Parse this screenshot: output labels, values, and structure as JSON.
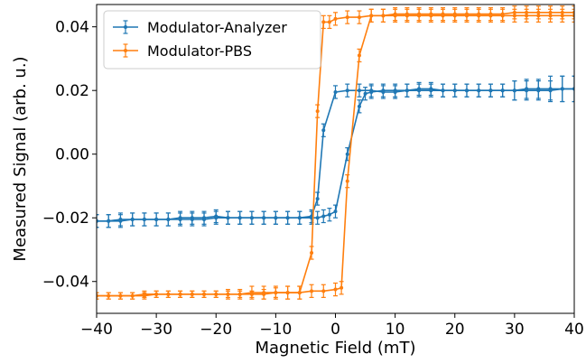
{
  "chart_data": {
    "type": "line",
    "title": "",
    "xlabel": "Magnetic Field (mT)",
    "ylabel": "Measured Signal (arb. u.)",
    "xlim": [
      -40,
      40
    ],
    "ylim": [
      -0.05,
      0.047
    ],
    "xticks": [
      -40,
      -30,
      -20,
      -10,
      0,
      10,
      20,
      30,
      40
    ],
    "xtick_labels": [
      "−40",
      "−30",
      "−20",
      "−10",
      "0",
      "10",
      "20",
      "30",
      "40"
    ],
    "yticks": [
      -0.04,
      -0.02,
      0.0,
      0.02,
      0.04
    ],
    "ytick_labels": [
      "−0.04",
      "−0.02",
      "0.00",
      "0.02",
      "0.04"
    ],
    "grid": false,
    "legend_position": "top-left",
    "error_bars": true,
    "series": [
      {
        "name": "Modulator-Analyzer",
        "color": "#1f77b4",
        "branches": [
          {
            "x": [
              -40,
              -38,
              -36,
              -34,
              -32,
              -30,
              -28,
              -26,
              -24,
              -22,
              -20,
              -18,
              -16,
              -14,
              -12,
              -10,
              -8,
              -6,
              -4,
              -3,
              -2,
              -1,
              0,
              2,
              4,
              5,
              6,
              8,
              10,
              12,
              14,
              16,
              18,
              20,
              22,
              24,
              26,
              28,
              30,
              32,
              34,
              36,
              38,
              40
            ],
            "y": [
              -0.021,
              -0.021,
              -0.0205,
              -0.0205,
              -0.0205,
              -0.0205,
              -0.0205,
              -0.02,
              -0.02,
              -0.02,
              -0.0195,
              -0.02,
              -0.02,
              -0.02,
              -0.02,
              -0.02,
              -0.02,
              -0.02,
              -0.02,
              -0.02,
              -0.0195,
              -0.019,
              -0.018,
              0.0,
              0.015,
              0.019,
              0.0195,
              0.02,
              0.02,
              0.02,
              0.0205,
              0.0205,
              0.02,
              0.02,
              0.02,
              0.02,
              0.02,
              0.02,
              0.02,
              0.0205,
              0.0205,
              0.0205,
              0.0205,
              0.0205
            ],
            "err": [
              0.002,
              0.002,
              0.002,
              0.002,
              0.002,
              0.002,
              0.002,
              0.002,
              0.002,
              0.002,
              0.002,
              0.002,
              0.002,
              0.002,
              0.002,
              0.002,
              0.002,
              0.002,
              0.002,
              0.002,
              0.002,
              0.002,
              0.002,
              0.002,
              0.002,
              0.002,
              0.002,
              0.002,
              0.002,
              0.002,
              0.002,
              0.002,
              0.002,
              0.002,
              0.002,
              0.002,
              0.002,
              0.002,
              0.003,
              0.003,
              0.003,
              0.004,
              0.004,
              0.004
            ]
          },
          {
            "x": [
              40,
              38,
              36,
              34,
              32,
              30,
              28,
              26,
              24,
              22,
              20,
              18,
              16,
              14,
              12,
              10,
              8,
              6,
              4,
              2,
              0,
              -2,
              -3,
              -4,
              -6,
              -8,
              -10,
              -12,
              -14,
              -16,
              -18,
              -20,
              -22,
              -24,
              -26,
              -28,
              -30,
              -32,
              -34,
              -36,
              -38,
              -40
            ],
            "y": [
              0.0205,
              0.0205,
              0.02,
              0.02,
              0.02,
              0.02,
              0.02,
              0.02,
              0.02,
              0.02,
              0.02,
              0.02,
              0.02,
              0.02,
              0.02,
              0.0195,
              0.0195,
              0.02,
              0.02,
              0.02,
              0.0195,
              0.0075,
              -0.014,
              -0.0195,
              -0.02,
              -0.02,
              -0.02,
              -0.02,
              -0.02,
              -0.02,
              -0.02,
              -0.02,
              -0.0205,
              -0.0205,
              -0.0205,
              -0.0205,
              -0.0205,
              -0.0205,
              -0.0205,
              -0.021,
              -0.021,
              -0.021
            ],
            "err": [
              0.004,
              0.004,
              0.003,
              0.003,
              0.003,
              0.003,
              0.002,
              0.002,
              0.002,
              0.002,
              0.002,
              0.002,
              0.002,
              0.002,
              0.002,
              0.002,
              0.002,
              0.002,
              0.002,
              0.002,
              0.002,
              0.002,
              0.002,
              0.002,
              0.002,
              0.002,
              0.002,
              0.002,
              0.002,
              0.002,
              0.002,
              0.002,
              0.002,
              0.002,
              0.002,
              0.002,
              0.002,
              0.002,
              0.002,
              0.002,
              0.002,
              0.002
            ]
          }
        ]
      },
      {
        "name": "Modulator-PBS",
        "color": "#ff7f0e",
        "branches": [
          {
            "x": [
              -40,
              -38,
              -36,
              -34,
              -32,
              -30,
              -28,
              -26,
              -24,
              -22,
              -20,
              -18,
              -16,
              -14,
              -12,
              -10,
              -8,
              -6,
              -4,
              -2,
              0,
              1,
              2,
              4,
              6,
              8,
              10,
              12,
              14,
              16,
              18,
              20,
              22,
              24,
              26,
              28,
              30,
              32,
              34,
              36,
              38,
              40
            ],
            "y": [
              -0.0445,
              -0.0445,
              -0.0445,
              -0.0445,
              -0.044,
              -0.044,
              -0.044,
              -0.044,
              -0.044,
              -0.044,
              -0.044,
              -0.044,
              -0.044,
              -0.044,
              -0.044,
              -0.0435,
              -0.0435,
              -0.0435,
              -0.043,
              -0.043,
              -0.0425,
              -0.042,
              -0.0085,
              0.031,
              0.0435,
              0.0435,
              0.0435,
              0.0435,
              0.0435,
              0.0435,
              0.0435,
              0.0435,
              0.0435,
              0.0435,
              0.0435,
              0.0435,
              0.0435,
              0.0435,
              0.0435,
              0.0435,
              0.0435,
              0.0435
            ],
            "err": [
              0.001,
              0.001,
              0.001,
              0.001,
              0.001,
              0.001,
              0.001,
              0.001,
              0.001,
              0.001,
              0.001,
              0.001,
              0.001,
              0.001,
              0.0015,
              0.0015,
              0.002,
              0.002,
              0.002,
              0.002,
              0.002,
              0.002,
              0.002,
              0.002,
              0.002,
              0.002,
              0.002,
              0.002,
              0.002,
              0.002,
              0.002,
              0.002,
              0.002,
              0.002,
              0.002,
              0.002,
              0.002,
              0.002,
              0.002,
              0.002,
              0.002,
              0.002
            ]
          },
          {
            "x": [
              40,
              38,
              36,
              34,
              32,
              30,
              28,
              26,
              24,
              22,
              20,
              18,
              16,
              14,
              12,
              10,
              8,
              6,
              4,
              2,
              0,
              -1,
              -2,
              -3,
              -4,
              -6,
              -8,
              -10,
              -12,
              -14,
              -16,
              -18,
              -20,
              -22,
              -24,
              -26,
              -28,
              -30,
              -32,
              -34,
              -36,
              -38,
              -40
            ],
            "y": [
              0.0445,
              0.0445,
              0.0445,
              0.0445,
              0.0445,
              0.0445,
              0.044,
              0.044,
              0.044,
              0.044,
              0.044,
              0.044,
              0.044,
              0.044,
              0.044,
              0.044,
              0.0435,
              0.0435,
              0.043,
              0.043,
              0.0425,
              0.0415,
              0.0415,
              0.0135,
              -0.031,
              -0.0435,
              -0.0435,
              -0.0435,
              -0.0435,
              -0.0435,
              -0.044,
              -0.044,
              -0.044,
              -0.044,
              -0.044,
              -0.044,
              -0.044,
              -0.044,
              -0.0445,
              -0.0445,
              -0.0445,
              -0.0445,
              -0.0445
            ],
            "err": [
              0.002,
              0.002,
              0.002,
              0.002,
              0.002,
              0.002,
              0.002,
              0.002,
              0.002,
              0.002,
              0.002,
              0.002,
              0.002,
              0.002,
              0.002,
              0.002,
              0.002,
              0.002,
              0.002,
              0.002,
              0.002,
              0.002,
              0.002,
              0.002,
              0.002,
              0.002,
              0.002,
              0.002,
              0.002,
              0.002,
              0.0015,
              0.0015,
              0.001,
              0.001,
              0.001,
              0.001,
              0.001,
              0.001,
              0.001,
              0.001,
              0.001,
              0.001,
              0.001
            ]
          }
        ]
      }
    ]
  }
}
